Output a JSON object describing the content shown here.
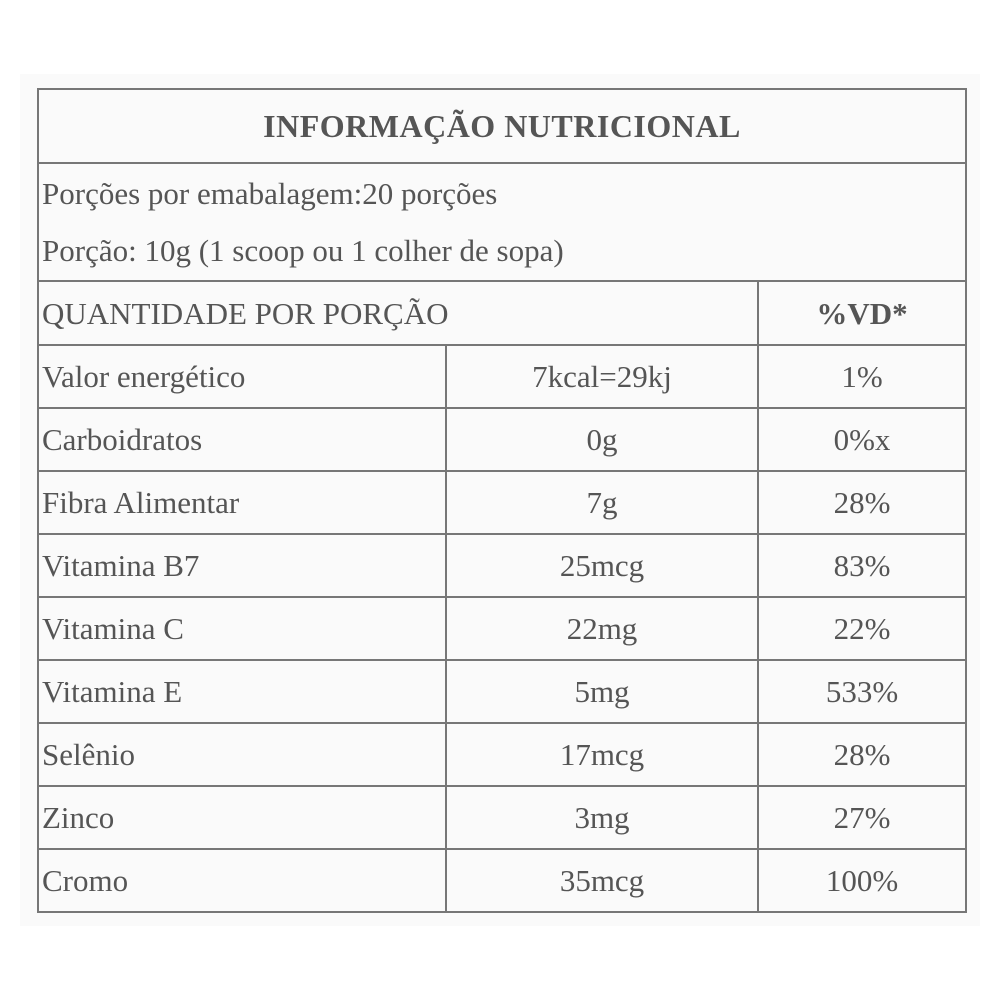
{
  "table": {
    "title": "INFORMAÇÃO NUTRICIONAL",
    "servings_per_package": "Porções por emabalagem:20 porções",
    "serving_size": "Porção: 10g (1 scoop ou 1 colher de sopa)",
    "quantity_header": "QUANTIDADE POR PORÇÃO",
    "vd_header": "%VD*",
    "rows": [
      {
        "nutrient": "Valor energético",
        "amount": "7kcal=29kj",
        "vd": "1%"
      },
      {
        "nutrient": "Carboidratos",
        "amount": "0g",
        "vd": "0%x"
      },
      {
        "nutrient": "Fibra Alimentar",
        "amount": "7g",
        "vd": "28%"
      },
      {
        "nutrient": "Vitamina B7",
        "amount": "25mcg",
        "vd": "83%"
      },
      {
        "nutrient": "Vitamina C",
        "amount": "22mg",
        "vd": "22%"
      },
      {
        "nutrient": "Vitamina E",
        "amount": "5mg",
        "vd": "533%"
      },
      {
        "nutrient": "Selênio",
        "amount": "17mcg",
        "vd": "28%"
      },
      {
        "nutrient": "Zinco",
        "amount": "3mg",
        "vd": "27%"
      },
      {
        "nutrient": "Cromo",
        "amount": "35mcg",
        "vd": "100%"
      }
    ]
  },
  "colors": {
    "text": "#555555",
    "border": "#777777",
    "panel_background": "#fafafa",
    "page_background": "#ffffff"
  }
}
